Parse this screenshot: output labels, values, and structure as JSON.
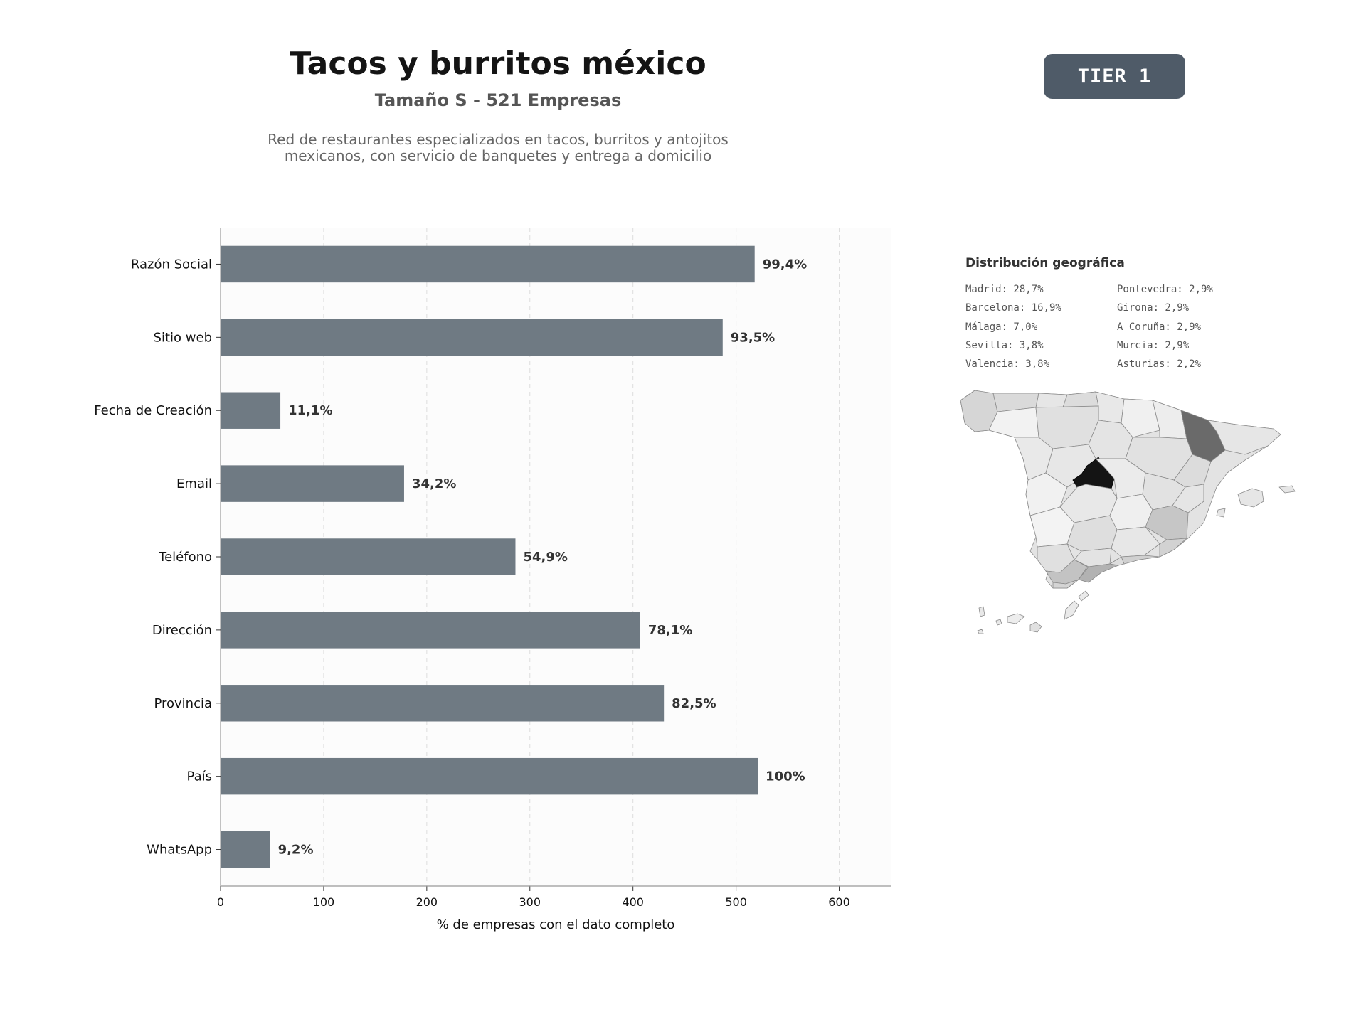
{
  "header": {
    "title": "Tacos y burritos méxico",
    "subtitle": "Tamaño S - 521 Empresas",
    "description_lines": [
      "Red de restaurantes especializados en tacos, burritos y antojitos",
      "mexicanos, con servicio de banquetes y entrega a domicilio"
    ]
  },
  "badge": {
    "label": "TIER 1"
  },
  "colors": {
    "bar": "#6f7a83",
    "badge": "#4f5b68",
    "map_max": "#141414",
    "map_min": "#f2f2f2"
  },
  "chart_data": {
    "type": "bar",
    "orientation": "horizontal",
    "categories": [
      "Razón Social",
      "Sitio web",
      "Fecha de Creación",
      "Email",
      "Teléfono",
      "Dirección",
      "Provincia",
      "País",
      "WhatsApp"
    ],
    "values": [
      518,
      487,
      58,
      178,
      286,
      407,
      430,
      521,
      48
    ],
    "data_labels": [
      "99,4%",
      "93,5%",
      "11,1%",
      "34,2%",
      "54,9%",
      "78,1%",
      "82,5%",
      "100%",
      "9,2%"
    ],
    "xlabel": "% de empresas con el dato completo",
    "ylabel": "",
    "xlim": [
      0,
      650
    ],
    "xticks": [
      0,
      100,
      200,
      300,
      400,
      500,
      600
    ],
    "grid": "vertical dashed"
  },
  "map": {
    "title": "Distribución geográfica",
    "legend_col1": [
      "Madrid: 28,7%",
      "Barcelona: 16,9%",
      "Málaga: 7,0%",
      "Sevilla: 3,8%",
      "Valencia: 3,8%"
    ],
    "legend_col2": [
      "Pontevedra: 2,9%",
      "Girona: 2,9%",
      "A Coruña: 2,9%",
      "Murcia: 2,9%",
      "Asturias: 2,2%"
    ]
  }
}
